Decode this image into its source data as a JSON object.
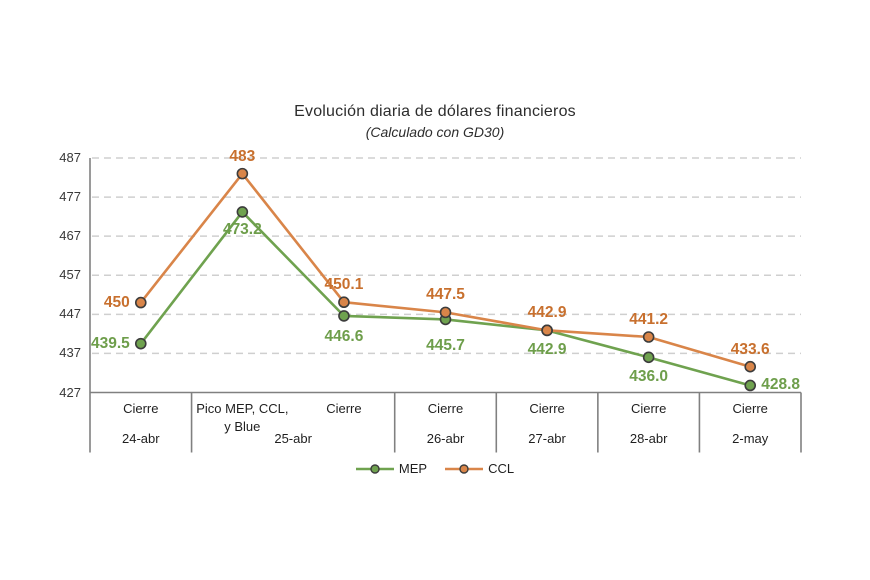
{
  "title": "Evolución diaria de dólares financieros",
  "subtitle": "(Calculado con GD30)",
  "colors": {
    "mep_line": "#6FA24F",
    "mep_label": "#6E9E4B",
    "ccl_line": "#D98549",
    "ccl_label": "#C8702E",
    "marker_stroke": "#3C3C3C",
    "gridline": "#CFCFCF",
    "axis": "#808080"
  },
  "chart_data": {
    "type": "line",
    "title": "Evolución diaria de dólares financieros",
    "subtitle": "(Calculado con GD30)",
    "ylim": [
      427,
      487
    ],
    "yticks": [
      487,
      477,
      467,
      457,
      447,
      437,
      427
    ],
    "grid": "horizontal dashed",
    "legend_position": "bottom",
    "categories_top": [
      "Cierre",
      "Pico MEP, CCL,\ny Blue",
      "Cierre",
      "Cierre",
      "Cierre",
      "Cierre",
      "Cierre"
    ],
    "date_groups": [
      {
        "label": "24-abr",
        "span": 1
      },
      {
        "label": "25-abr",
        "span": 2
      },
      {
        "label": "26-abr",
        "span": 1
      },
      {
        "label": "27-abr",
        "span": 1
      },
      {
        "label": "28-abr",
        "span": 1
      },
      {
        "label": "2-may",
        "span": 1
      }
    ],
    "series": [
      {
        "name": "MEP",
        "line_color": "#6FA24F",
        "label_color": "#6E9E4B",
        "values": [
          439.5,
          473.2,
          446.6,
          445.7,
          442.9,
          436.0,
          428.8
        ],
        "labels": [
          "439.5",
          "473.2",
          "446.6",
          "445.7",
          "442.9",
          "436.0",
          "428.8"
        ]
      },
      {
        "name": "CCL",
        "line_color": "#D98549",
        "label_color": "#C8702E",
        "values": [
          450,
          483,
          450.1,
          447.5,
          442.9,
          441.2,
          433.6
        ],
        "labels": [
          "450",
          "483",
          "450.1",
          "447.5",
          "442.9",
          "441.2",
          "433.6"
        ]
      }
    ]
  }
}
